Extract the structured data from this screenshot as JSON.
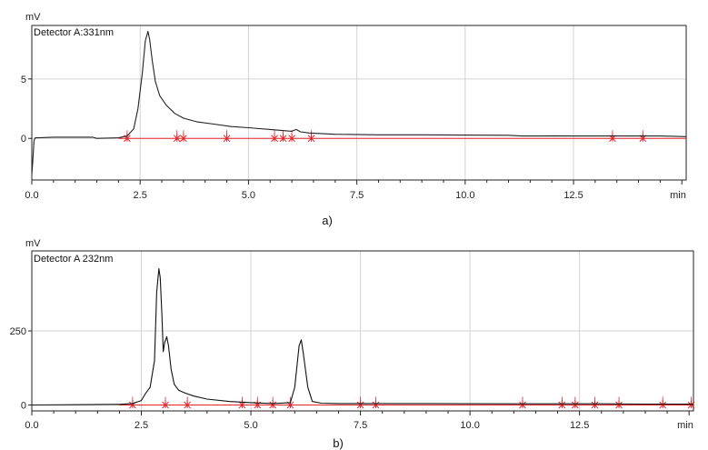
{
  "chart_data": [
    {
      "type": "line",
      "caption": "a)",
      "detector": "Detector A:331nm",
      "ylabel": "mV",
      "xunit": "min",
      "xlim": [
        0,
        15.1
      ],
      "ylim": [
        -3.5,
        9.5
      ],
      "xticks": [
        0.0,
        2.5,
        5.0,
        7.5,
        10.0,
        12.5
      ],
      "xtick_labels": [
        "0.0",
        "2.5",
        "5.0",
        "7.5",
        "10.0",
        "12.5"
      ],
      "yticks": [
        0,
        5
      ],
      "ytick_labels": [
        "0",
        "5"
      ],
      "grid": true,
      "baseline_mv": 0,
      "line_color": "#222222",
      "marker_color": "#e8252c",
      "trace": {
        "x": [
          0.0,
          0.02,
          0.05,
          0.08,
          0.15,
          0.5,
          1.0,
          1.4,
          1.5,
          2.0,
          2.2,
          2.35,
          2.45,
          2.55,
          2.62,
          2.68,
          2.72,
          2.78,
          2.85,
          2.95,
          3.1,
          3.3,
          3.5,
          3.8,
          4.2,
          4.6,
          5.0,
          5.5,
          6.0,
          6.1,
          6.2,
          6.4,
          7.0,
          8.0,
          9.0,
          10.0,
          11.0,
          11.3,
          11.5,
          11.7,
          12.0,
          12.5,
          13.0,
          13.5,
          14.0,
          14.5,
          15.1
        ],
        "y": [
          -3.0,
          -2.0,
          -0.2,
          0.05,
          0.05,
          0.1,
          0.1,
          0.1,
          0.0,
          0.05,
          0.2,
          0.8,
          2.5,
          5.5,
          8.2,
          9.0,
          8.3,
          6.5,
          4.8,
          3.6,
          2.8,
          2.1,
          1.7,
          1.4,
          1.2,
          1.0,
          0.9,
          0.75,
          0.6,
          0.75,
          0.55,
          0.45,
          0.35,
          0.3,
          0.3,
          0.28,
          0.26,
          0.2,
          0.2,
          0.2,
          0.22,
          0.2,
          0.2,
          0.2,
          0.2,
          0.2,
          0.15
        ]
      },
      "peak_marks": [
        2.2,
        3.35,
        3.5,
        4.5,
        5.6,
        5.8,
        6.0,
        6.45,
        13.4,
        14.1
      ]
    },
    {
      "type": "line",
      "caption": "b)",
      "detector": "Detector A 232nm",
      "ylabel": "mV",
      "xunit": "min",
      "xlim": [
        0,
        15.1
      ],
      "ylim": [
        -20,
        520
      ],
      "xticks": [
        0.0,
        2.5,
        5.0,
        7.5,
        10.0,
        12.5
      ],
      "xtick_labels": [
        "0.0",
        "2.5",
        "5.0",
        "7.5",
        "10.0",
        "12.5"
      ],
      "yticks": [
        0,
        250
      ],
      "ytick_labels": [
        "0",
        "250"
      ],
      "grid": true,
      "baseline_mv": 0,
      "line_color": "#111111",
      "marker_color": "#e8252c",
      "trace": {
        "x": [
          0.0,
          1.0,
          2.0,
          2.3,
          2.5,
          2.6,
          2.7,
          2.8,
          2.85,
          2.9,
          2.93,
          2.97,
          3.0,
          3.03,
          3.08,
          3.12,
          3.18,
          3.25,
          3.35,
          3.5,
          3.7,
          4.0,
          4.5,
          5.0,
          5.5,
          5.9,
          6.0,
          6.1,
          6.15,
          6.2,
          6.3,
          6.4,
          6.6,
          7.0,
          9.0,
          11.0,
          12.0,
          13.0,
          14.0,
          15.1
        ],
        "y": [
          0,
          1,
          2,
          5,
          15,
          40,
          60,
          150,
          380,
          460,
          430,
          300,
          180,
          210,
          230,
          200,
          120,
          70,
          50,
          40,
          30,
          20,
          12,
          8,
          5,
          8,
          60,
          200,
          220,
          170,
          60,
          12,
          6,
          5,
          5,
          4,
          4,
          4,
          3,
          3
        ]
      },
      "peak_marks": [
        2.3,
        3.05,
        3.55,
        4.8,
        5.15,
        5.5,
        5.9,
        7.5,
        7.85,
        11.2,
        12.1,
        12.4,
        12.85,
        13.4,
        14.4,
        15.05
      ]
    }
  ]
}
